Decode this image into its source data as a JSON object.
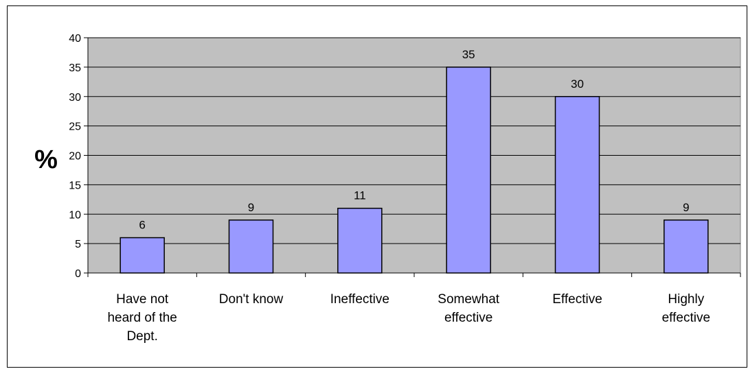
{
  "chart_data": {
    "type": "bar",
    "categories": [
      [
        "Have not",
        "heard of the",
        "Dept."
      ],
      [
        "Don't know"
      ],
      [
        "Ineffective"
      ],
      [
        "Somewhat",
        "effective"
      ],
      [
        "Effective"
      ],
      [
        "Highly",
        "effective"
      ]
    ],
    "values": [
      6,
      9,
      11,
      35,
      30,
      9
    ],
    "ylabel": "%",
    "ylim": [
      0,
      40
    ],
    "yticks": [
      0,
      5,
      10,
      15,
      20,
      25,
      30,
      35,
      40
    ],
    "grid": true,
    "data_labels": true,
    "colors": {
      "plot_background": "#c0c0c0",
      "bar_fill": "#9999ff",
      "bar_stroke": "#000000",
      "gridline": "#000000"
    }
  }
}
